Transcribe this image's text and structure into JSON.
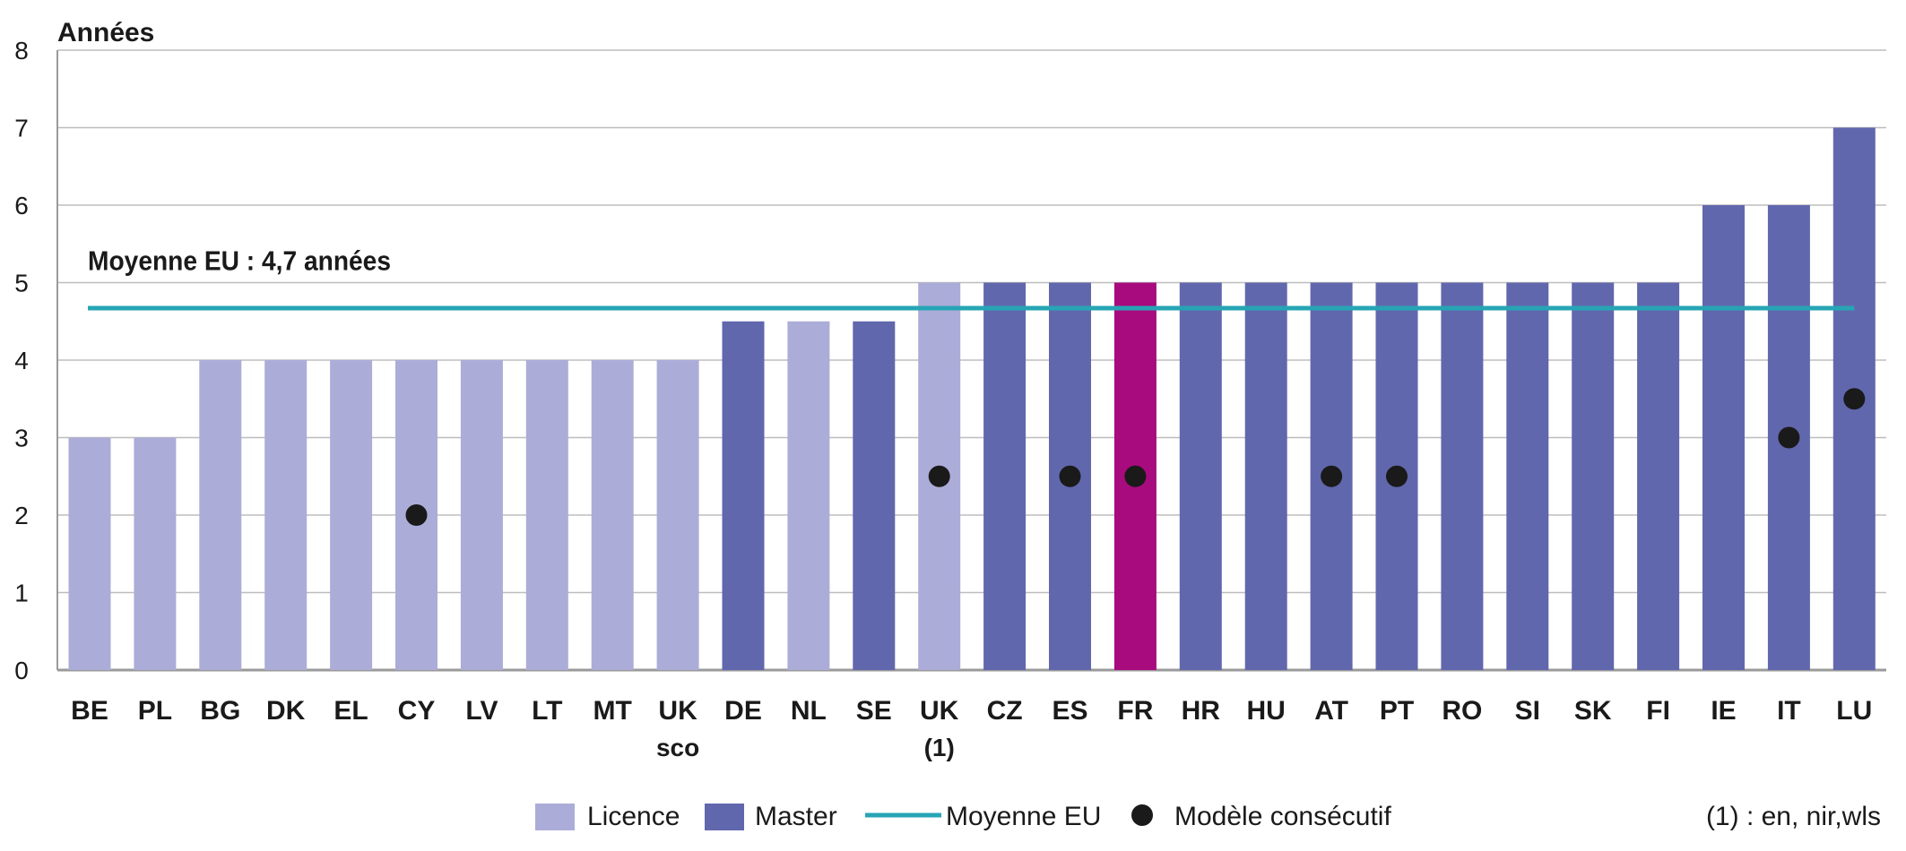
{
  "chart_data": {
    "type": "bar",
    "ylabel": "Années",
    "ylim": [
      0,
      8
    ],
    "yticks": [
      0,
      1,
      2,
      3,
      4,
      5,
      6,
      7,
      8
    ],
    "grid": true,
    "categories": [
      {
        "code": "BE",
        "sub": ""
      },
      {
        "code": "PL",
        "sub": ""
      },
      {
        "code": "BG",
        "sub": ""
      },
      {
        "code": "DK",
        "sub": ""
      },
      {
        "code": "EL",
        "sub": ""
      },
      {
        "code": "CY",
        "sub": ""
      },
      {
        "code": "LV",
        "sub": ""
      },
      {
        "code": "LT",
        "sub": ""
      },
      {
        "code": "MT",
        "sub": ""
      },
      {
        "code": "UK",
        "sub": "sco"
      },
      {
        "code": "DE",
        "sub": ""
      },
      {
        "code": "NL",
        "sub": ""
      },
      {
        "code": "SE",
        "sub": ""
      },
      {
        "code": "UK",
        "sub": "(1)"
      },
      {
        "code": "CZ",
        "sub": ""
      },
      {
        "code": "ES",
        "sub": ""
      },
      {
        "code": "FR",
        "sub": ""
      },
      {
        "code": "HR",
        "sub": ""
      },
      {
        "code": "HU",
        "sub": ""
      },
      {
        "code": "AT",
        "sub": ""
      },
      {
        "code": "PT",
        "sub": ""
      },
      {
        "code": "RO",
        "sub": ""
      },
      {
        "code": "SI",
        "sub": ""
      },
      {
        "code": "SK",
        "sub": ""
      },
      {
        "code": "FI",
        "sub": ""
      },
      {
        "code": "IE",
        "sub": ""
      },
      {
        "code": "IT",
        "sub": ""
      },
      {
        "code": "LU",
        "sub": ""
      }
    ],
    "values": [
      3,
      3,
      4,
      4,
      4,
      4,
      4,
      4,
      4,
      4,
      4.5,
      4.5,
      4.5,
      5,
      5,
      5,
      5,
      5,
      5,
      5,
      5,
      5,
      5,
      5,
      5,
      6,
      6,
      7
    ],
    "bar_types": [
      "licence",
      "licence",
      "licence",
      "licence",
      "licence",
      "licence",
      "licence",
      "licence",
      "licence",
      "licence",
      "master",
      "licence",
      "master",
      "licence",
      "master",
      "master",
      "highlight",
      "master",
      "master",
      "master",
      "master",
      "master",
      "master",
      "master",
      "master",
      "master",
      "master",
      "master"
    ],
    "consecutive_model": [
      null,
      null,
      null,
      null,
      null,
      2,
      null,
      null,
      null,
      null,
      null,
      null,
      null,
      2.5,
      null,
      2.5,
      2.5,
      null,
      null,
      2.5,
      2.5,
      null,
      null,
      null,
      null,
      null,
      3,
      3.5
    ],
    "eu_average": {
      "value": 4.67,
      "label": "Moyenne EU : 4,7 années"
    },
    "colors": {
      "licence": "#acacd8",
      "master": "#6167ad",
      "highlight": "#a80b7d",
      "average_line": "#27a5b5",
      "dot": "#1a1a1a",
      "grid": "#bdbdbd",
      "text": "#1a1a1a"
    },
    "legend": {
      "position": "bottom",
      "items": [
        {
          "label": "Licence",
          "kind": "licence"
        },
        {
          "label": "Master",
          "kind": "master"
        },
        {
          "label": "Moyenne EU",
          "kind": "line"
        },
        {
          "label": "Modèle consécutif",
          "kind": "dot"
        }
      ],
      "footnote": "(1) : en, nir,wls"
    }
  }
}
